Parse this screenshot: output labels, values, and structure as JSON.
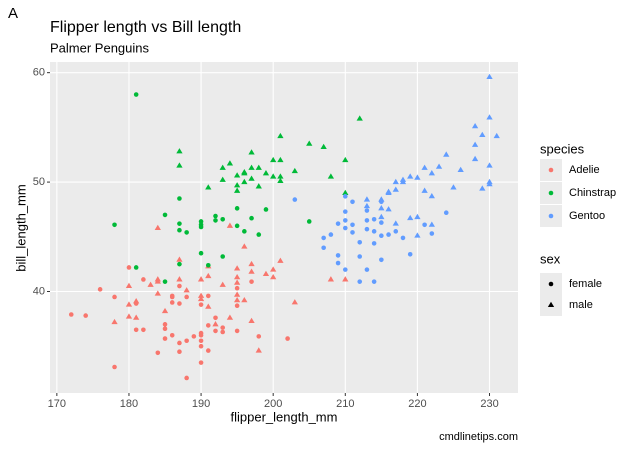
{
  "chart_data": {
    "type": "scatter",
    "tag": "A",
    "title": "Flipper length vs Bill length",
    "subtitle": "Palmer Penguins",
    "x_label": "flipper_length_mm",
    "y_label": "bill_length_mm",
    "caption": "cmdlinetips.com",
    "xlim": [
      169.05,
      233.95
    ],
    "ylim": [
      30.725,
      60.975
    ],
    "xticks": [
      170,
      180,
      190,
      200,
      210,
      220,
      230
    ],
    "yticks": [
      40,
      50,
      60
    ],
    "grid": true,
    "color_legend_title": "species",
    "shape_legend": {
      "title": "sex",
      "items": [
        "female",
        "male"
      ]
    },
    "series": [
      {
        "name": "Adelie",
        "color": "#F8766D",
        "points": [
          [
            181,
            39.1,
            "male"
          ],
          [
            186,
            39.5,
            "female"
          ],
          [
            195,
            40.3,
            "female"
          ],
          [
            193,
            36.7,
            "female"
          ],
          [
            190,
            39.3,
            "male"
          ],
          [
            181,
            38.9,
            "female"
          ],
          [
            195,
            39.2,
            "male"
          ],
          [
            182,
            41.1,
            "female"
          ],
          [
            191,
            38.6,
            "male"
          ],
          [
            198,
            34.6,
            "male"
          ],
          [
            185,
            36.6,
            "female"
          ],
          [
            195,
            38.7,
            "female"
          ],
          [
            197,
            42.5,
            "male"
          ],
          [
            184,
            34.4,
            "female"
          ],
          [
            194,
            46.0,
            "male"
          ],
          [
            174,
            37.8,
            "female"
          ],
          [
            180,
            37.7,
            "male"
          ],
          [
            189,
            35.9,
            "female"
          ],
          [
            185,
            38.2,
            "male"
          ],
          [
            180,
            38.8,
            "male"
          ],
          [
            187,
            35.3,
            "female"
          ],
          [
            183,
            40.6,
            "male"
          ],
          [
            187,
            40.5,
            "female"
          ],
          [
            172,
            37.9,
            "female"
          ],
          [
            180,
            40.5,
            "male"
          ],
          [
            178,
            39.5,
            "female"
          ],
          [
            178,
            37.2,
            "male"
          ],
          [
            188,
            39.5,
            "female"
          ],
          [
            184,
            40.9,
            "male"
          ],
          [
            195,
            36.4,
            "female"
          ],
          [
            196,
            39.2,
            "male"
          ],
          [
            190,
            38.8,
            "female"
          ],
          [
            180,
            42.2,
            "female"
          ],
          [
            181,
            37.6,
            "male"
          ],
          [
            184,
            39.8,
            "male"
          ],
          [
            182,
            36.5,
            "female"
          ],
          [
            195,
            40.8,
            "male"
          ],
          [
            186,
            36.0,
            "female"
          ],
          [
            196,
            44.1,
            "male"
          ],
          [
            185,
            37.0,
            "female"
          ],
          [
            190,
            39.6,
            "male"
          ],
          [
            190,
            36.0,
            "female"
          ],
          [
            191,
            42.3,
            "male"
          ],
          [
            186,
            39.6,
            "female"
          ],
          [
            188,
            40.1,
            "male"
          ],
          [
            190,
            35.0,
            "female"
          ],
          [
            200,
            42.0,
            "male"
          ],
          [
            187,
            34.5,
            "female"
          ],
          [
            191,
            41.4,
            "male"
          ],
          [
            186,
            39.0,
            "female"
          ],
          [
            193,
            40.6,
            "male"
          ],
          [
            181,
            36.5,
            "female"
          ],
          [
            194,
            37.6,
            "male"
          ],
          [
            185,
            35.7,
            "female"
          ],
          [
            195,
            41.3,
            "male"
          ],
          [
            192,
            37.6,
            "female"
          ],
          [
            184,
            41.1,
            "male"
          ],
          [
            192,
            36.4,
            "female"
          ],
          [
            199,
            41.6,
            "male"
          ],
          [
            188,
            35.5,
            "female"
          ],
          [
            190,
            41.1,
            "male"
          ],
          [
            198,
            35.9,
            "female"
          ],
          [
            197,
            41.8,
            "male"
          ],
          [
            190,
            33.5,
            "female"
          ],
          [
            195,
            39.7,
            "male"
          ],
          [
            191,
            39.6,
            "female"
          ],
          [
            184,
            45.8,
            "male"
          ],
          [
            190,
            35.5,
            "female"
          ],
          [
            201,
            42.8,
            "male"
          ],
          [
            197,
            40.9,
            "female"
          ],
          [
            190,
            36.2,
            "female"
          ],
          [
            195,
            42.1,
            "male"
          ],
          [
            191,
            34.6,
            "female"
          ],
          [
            187,
            42.9,
            "male"
          ],
          [
            197,
            37.3,
            "male"
          ],
          [
            200,
            41.3,
            "male"
          ],
          [
            193,
            36.3,
            "female"
          ],
          [
            191,
            36.9,
            "female"
          ],
          [
            187,
            38.9,
            "female"
          ],
          [
            187,
            41.1,
            "male"
          ],
          [
            178,
            33.1,
            "female"
          ],
          [
            188,
            32.1,
            "female"
          ],
          [
            192,
            37.0,
            "male"
          ],
          [
            210,
            41.1,
            "male"
          ],
          [
            208,
            41.1,
            "male"
          ],
          [
            202,
            35.7,
            "female"
          ],
          [
            176,
            40.2,
            "female"
          ],
          [
            203,
            39.0,
            "male"
          ]
        ]
      },
      {
        "name": "Chinstrap",
        "color": "#00BA38",
        "points": [
          [
            192,
            46.5,
            "female"
          ],
          [
            196,
            50.0,
            "male"
          ],
          [
            193,
            51.3,
            "male"
          ],
          [
            188,
            45.4,
            "female"
          ],
          [
            197,
            52.7,
            "male"
          ],
          [
            198,
            45.2,
            "female"
          ],
          [
            178,
            46.1,
            "female"
          ],
          [
            197,
            51.3,
            "male"
          ],
          [
            195,
            46.0,
            "female"
          ],
          [
            198,
            51.3,
            "male"
          ],
          [
            193,
            46.6,
            "female"
          ],
          [
            194,
            51.7,
            "male"
          ],
          [
            185,
            47.0,
            "female"
          ],
          [
            201,
            52.0,
            "male"
          ],
          [
            190,
            45.9,
            "female"
          ],
          [
            201,
            50.5,
            "male"
          ],
          [
            197,
            50.3,
            "male"
          ],
          [
            181,
            58.0,
            "female"
          ],
          [
            190,
            46.4,
            "female"
          ],
          [
            195,
            49.2,
            "male"
          ],
          [
            191,
            42.4,
            "female"
          ],
          [
            187,
            48.5,
            "female"
          ],
          [
            193,
            43.2,
            "female"
          ],
          [
            195,
            50.6,
            "male"
          ],
          [
            197,
            46.7,
            "female"
          ],
          [
            200,
            52.0,
            "male"
          ],
          [
            200,
            50.5,
            "male"
          ],
          [
            191,
            49.5,
            "male"
          ],
          [
            205,
            46.4,
            "female"
          ],
          [
            187,
            52.8,
            "male"
          ],
          [
            201,
            54.2,
            "male"
          ],
          [
            187,
            42.5,
            "female"
          ],
          [
            203,
            51.0,
            "male"
          ],
          [
            195,
            49.7,
            "male"
          ],
          [
            199,
            47.5,
            "female"
          ],
          [
            195,
            47.6,
            "female"
          ],
          [
            210,
            52.0,
            "male"
          ],
          [
            192,
            46.9,
            "female"
          ],
          [
            205,
            53.5,
            "male"
          ],
          [
            210,
            49.0,
            "male"
          ],
          [
            187,
            46.2,
            "female"
          ],
          [
            196,
            50.9,
            "male"
          ],
          [
            196,
            45.5,
            "female"
          ],
          [
            196,
            50.8,
            "male"
          ],
          [
            201,
            50.1,
            "male"
          ],
          [
            190,
            46.1,
            "female"
          ],
          [
            212,
            55.8,
            "male"
          ],
          [
            187,
            51.5,
            "male"
          ],
          [
            198,
            49.6,
            "male"
          ],
          [
            199,
            50.8,
            "male"
          ],
          [
            193,
            50.2,
            "male"
          ],
          [
            187,
            45.6,
            "female"
          ],
          [
            190,
            43.5,
            "female"
          ],
          [
            185,
            40.9,
            "female"
          ],
          [
            208,
            50.5,
            "male"
          ],
          [
            207,
            53.2,
            "male"
          ],
          [
            181,
            42.2,
            "female"
          ]
        ]
      },
      {
        "name": "Gentoo",
        "color": "#619CFF",
        "points": [
          [
            211,
            46.1,
            "female"
          ],
          [
            230,
            50.0,
            "male"
          ],
          [
            210,
            48.7,
            "female"
          ],
          [
            218,
            50.0,
            "male"
          ],
          [
            215,
            47.6,
            "male"
          ],
          [
            210,
            46.5,
            "female"
          ],
          [
            211,
            45.4,
            "female"
          ],
          [
            219,
            46.7,
            "male"
          ],
          [
            209,
            43.3,
            "female"
          ],
          [
            215,
            46.8,
            "male"
          ],
          [
            214,
            40.9,
            "female"
          ],
          [
            216,
            49.0,
            "male"
          ],
          [
            214,
            45.5,
            "female"
          ],
          [
            213,
            48.4,
            "male"
          ],
          [
            210,
            45.8,
            "female"
          ],
          [
            217,
            49.3,
            "male"
          ],
          [
            210,
            42.0,
            "female"
          ],
          [
            221,
            49.2,
            "male"
          ],
          [
            209,
            46.2,
            "female"
          ],
          [
            222,
            48.7,
            "male"
          ],
          [
            218,
            50.2,
            "male"
          ],
          [
            215,
            45.1,
            "female"
          ],
          [
            213,
            46.5,
            "female"
          ],
          [
            215,
            46.3,
            "female"
          ],
          [
            215,
            42.9,
            "female"
          ],
          [
            222,
            46.1,
            "male"
          ],
          [
            212,
            44.5,
            "female"
          ],
          [
            213,
            47.8,
            "male"
          ],
          [
            211,
            48.2,
            "female"
          ],
          [
            217,
            50.0,
            "male"
          ],
          [
            210,
            47.3,
            "female"
          ],
          [
            220,
            45.1,
            "male"
          ],
          [
            230,
            59.6,
            "male"
          ],
          [
            229,
            54.3,
            "male"
          ],
          [
            230,
            55.9,
            "male"
          ],
          [
            231,
            54.2,
            "male"
          ],
          [
            228,
            55.1,
            "male"
          ],
          [
            228,
            52.1,
            "male"
          ],
          [
            224,
            52.5,
            "male"
          ],
          [
            230,
            51.5,
            "male"
          ],
          [
            229,
            49.4,
            "male"
          ],
          [
            230,
            49.8,
            "male"
          ],
          [
            226,
            51.1,
            "male"
          ],
          [
            225,
            49.5,
            "male"
          ],
          [
            223,
            51.4,
            "male"
          ],
          [
            221,
            51.3,
            "male"
          ],
          [
            220,
            50.4,
            "male"
          ],
          [
            222,
            50.8,
            "male"
          ],
          [
            219,
            50.5,
            "male"
          ],
          [
            216,
            47.5,
            "male"
          ],
          [
            213,
            47.4,
            "female"
          ],
          [
            215,
            48.4,
            "male"
          ],
          [
            218,
            44.9,
            "female"
          ],
          [
            219,
            43.4,
            "female"
          ],
          [
            220,
            46.8,
            "male"
          ],
          [
            222,
            45.3,
            "female"
          ],
          [
            212,
            43.2,
            "female"
          ],
          [
            213,
            45.7,
            "female"
          ],
          [
            214,
            46.6,
            "female"
          ],
          [
            208,
            45.2,
            "female"
          ],
          [
            207,
            44.9,
            "female"
          ],
          [
            203,
            48.4,
            "female"
          ],
          [
            207,
            44.0,
            "female"
          ],
          [
            209,
            42.6,
            "female"
          ],
          [
            213,
            42.0,
            "female"
          ],
          [
            217,
            45.5,
            "female"
          ],
          [
            221,
            46.1,
            "female"
          ],
          [
            215,
            48.2,
            "female"
          ],
          [
            216,
            49.1,
            "male"
          ],
          [
            217,
            46.2,
            "male"
          ],
          [
            224,
            47.2,
            "female"
          ],
          [
            214,
            44.4,
            "female"
          ],
          [
            216,
            45.2,
            "female"
          ],
          [
            212,
            40.9,
            "female"
          ],
          [
            228,
            53.4,
            "male"
          ]
        ]
      }
    ]
  }
}
